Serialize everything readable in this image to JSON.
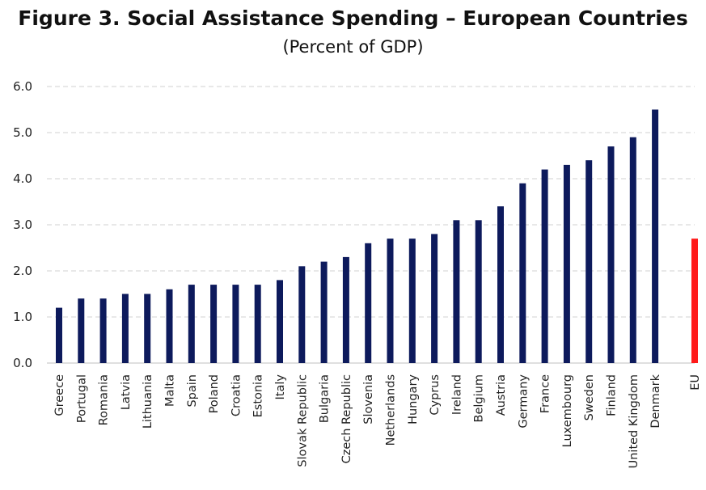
{
  "chart_data": {
    "type": "bar",
    "title": "Figure 3. Social Assistance Spending – European Countries",
    "subtitle": "(Percent of GDP)",
    "xlabel": "",
    "ylabel": "",
    "ylim": [
      0,
      6
    ],
    "yticks": [
      "0.0",
      "1.0",
      "2.0",
      "3.0",
      "4.0",
      "5.0",
      "6.0"
    ],
    "grid": "horizontal dashed",
    "legend": "none",
    "bar_color": "#0d1a5c",
    "highlight_color": "#ff1a1a",
    "categories": [
      "Greece",
      "Portugal",
      "Romania",
      "Latvia",
      "Lithuania",
      "Malta",
      "Spain",
      "Poland",
      "Croatia",
      "Estonia",
      "Italy",
      "Slovak Republic",
      "Bulgaria",
      "Czech Republic",
      "Slovenia",
      "Netherlands",
      "Hungary",
      "Cyprus",
      "Ireland",
      "Belgium",
      "Austria",
      "Germany",
      "France",
      "Luxembourg",
      "Sweden",
      "Finland",
      "United Kingdom",
      "Denmark"
    ],
    "values": [
      1.2,
      1.4,
      1.4,
      1.5,
      1.5,
      1.6,
      1.7,
      1.7,
      1.7,
      1.7,
      1.8,
      2.1,
      2.2,
      2.3,
      2.6,
      2.7,
      2.7,
      2.8,
      3.1,
      3.1,
      3.4,
      3.9,
      4.2,
      4.3,
      4.4,
      4.7,
      4.9,
      5.5
    ],
    "highlight": {
      "category": "EU",
      "value": 2.7
    }
  }
}
